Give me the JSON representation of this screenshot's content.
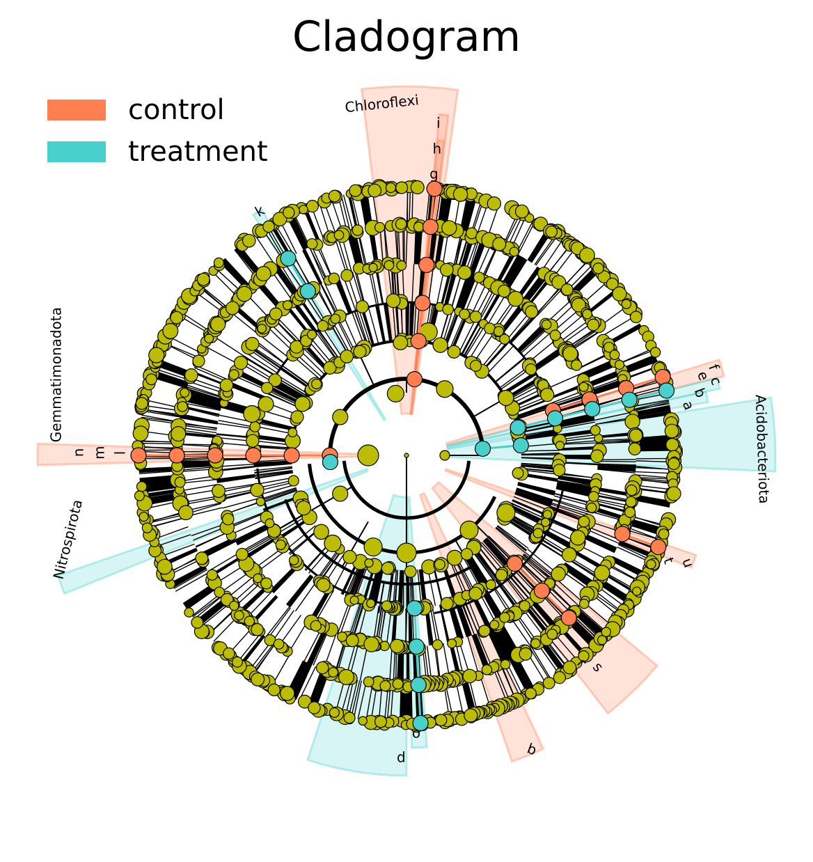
{
  "title": "Cladogram",
  "colors": {
    "control": "#ff7f50",
    "treatment": "#48d1cc",
    "node": "#bcbd00",
    "edge": "#000000"
  },
  "legend": [
    {
      "label": "control",
      "color": "#ff7f50"
    },
    {
      "label": "treatment",
      "color": "#48d1cc"
    }
  ],
  "clades": [
    {
      "label": "Chloroflexi",
      "group": "control"
    },
    {
      "label": "Acidobacteriota",
      "group": "treatment"
    },
    {
      "label": "Gemmatimonadota",
      "group": "control"
    },
    {
      "label": "Nitrospirota",
      "group": "treatment"
    }
  ],
  "markers": [
    {
      "label": "i",
      "group": "control"
    },
    {
      "label": "h",
      "group": "control"
    },
    {
      "label": "g",
      "group": "control"
    },
    {
      "label": "k",
      "group": "treatment"
    },
    {
      "label": "f",
      "group": "control"
    },
    {
      "label": "c",
      "group": "treatment"
    },
    {
      "label": "e",
      "group": "control"
    },
    {
      "label": "b",
      "group": "treatment"
    },
    {
      "label": "a",
      "group": "treatment"
    },
    {
      "label": "n",
      "group": "control"
    },
    {
      "label": "m",
      "group": "control"
    },
    {
      "label": "l",
      "group": "control"
    },
    {
      "label": "u",
      "group": "control"
    },
    {
      "label": "t",
      "group": "control"
    },
    {
      "label": "s",
      "group": "control"
    },
    {
      "label": "r",
      "group": "control"
    },
    {
      "label": "b",
      "group": "control"
    },
    {
      "label": "o",
      "group": "treatment"
    },
    {
      "label": "d",
      "group": "treatment"
    }
  ]
}
